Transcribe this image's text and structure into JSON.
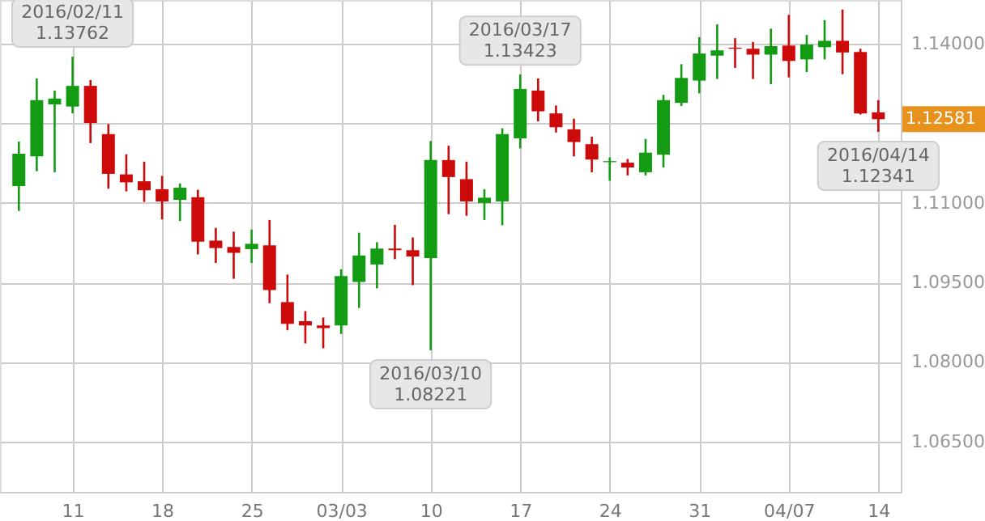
{
  "chart_data": {
    "type": "candlestick",
    "categories": [
      null,
      null,
      null,
      "11",
      null,
      null,
      null,
      null,
      "18",
      null,
      null,
      null,
      null,
      "25",
      null,
      null,
      null,
      null,
      "03/03",
      null,
      null,
      null,
      null,
      "10",
      null,
      null,
      null,
      null,
      "17",
      null,
      null,
      null,
      null,
      "24",
      null,
      null,
      null,
      null,
      "31",
      null,
      null,
      null,
      null,
      "04/07",
      null,
      null,
      null,
      null,
      "14"
    ],
    "ohlc": [
      [
        1.1132,
        1.1216,
        1.1085,
        1.1193
      ],
      [
        1.1188,
        1.1335,
        1.116,
        1.1294
      ],
      [
        1.1286,
        1.1312,
        1.1158,
        1.1297
      ],
      [
        1.1282,
        1.13762,
        1.1269,
        1.1321
      ],
      [
        1.1321,
        1.1332,
        1.1213,
        1.1251
      ],
      [
        1.123,
        1.1249,
        1.1127,
        1.1155
      ],
      [
        1.1154,
        1.1192,
        1.1122,
        1.1139
      ],
      [
        1.1141,
        1.1178,
        1.1102,
        1.1124
      ],
      [
        1.1126,
        1.1151,
        1.1069,
        1.1103
      ],
      [
        1.1106,
        1.1137,
        1.1066,
        1.1129
      ],
      [
        1.1111,
        1.1125,
        1.1003,
        1.1027
      ],
      [
        1.1029,
        1.1053,
        1.0987,
        1.1015
      ],
      [
        1.1017,
        1.1046,
        1.0957,
        1.1006
      ],
      [
        1.1013,
        1.105,
        1.0987,
        1.1023
      ],
      [
        1.102,
        1.1068,
        1.0911,
        1.0936
      ],
      [
        1.0913,
        1.0965,
        1.086,
        1.0872
      ],
      [
        1.0877,
        1.0896,
        1.0835,
        1.0869
      ],
      [
        1.0869,
        1.0884,
        1.0826,
        1.0864
      ],
      [
        1.0869,
        1.0975,
        1.0853,
        1.0962
      ],
      [
        1.0951,
        1.1044,
        1.0902,
        1.1001
      ],
      [
        1.0984,
        1.1026,
        1.0939,
        1.1014
      ],
      [
        1.1014,
        1.1059,
        1.0994,
        1.1011
      ],
      [
        1.1011,
        1.1035,
        1.0945,
        1.0999
      ],
      [
        1.0996,
        1.1217,
        1.08221,
        1.1181
      ],
      [
        1.1181,
        1.1208,
        1.1079,
        1.1149
      ],
      [
        1.1145,
        1.1178,
        1.1076,
        1.1103
      ],
      [
        1.11,
        1.1126,
        1.1068,
        1.111
      ],
      [
        1.1103,
        1.1241,
        1.1058,
        1.123
      ],
      [
        1.1222,
        1.13423,
        1.1203,
        1.1315
      ],
      [
        1.1312,
        1.1335,
        1.1254,
        1.1273
      ],
      [
        1.1269,
        1.1284,
        1.1233,
        1.1243
      ],
      [
        1.1239,
        1.1259,
        1.1188,
        1.1215
      ],
      [
        1.1211,
        1.1225,
        1.1158,
        1.1182
      ],
      [
        1.1177,
        1.1186,
        1.1142,
        1.1179
      ],
      [
        1.1176,
        1.1183,
        1.1152,
        1.1167
      ],
      [
        1.1158,
        1.1221,
        1.1152,
        1.1195
      ],
      [
        1.1191,
        1.1304,
        1.1167,
        1.1294
      ],
      [
        1.1289,
        1.1362,
        1.1283,
        1.1336
      ],
      [
        1.1331,
        1.1413,
        1.1307,
        1.1382
      ],
      [
        1.1378,
        1.1437,
        1.1334,
        1.1388
      ],
      [
        1.1393,
        1.1411,
        1.1355,
        1.1391
      ],
      [
        1.1391,
        1.1404,
        1.1334,
        1.138
      ],
      [
        1.138,
        1.1429,
        1.1324,
        1.1396
      ],
      [
        1.1397,
        1.1455,
        1.1337,
        1.1368
      ],
      [
        1.1371,
        1.1417,
        1.1347,
        1.1399
      ],
      [
        1.1394,
        1.1445,
        1.1371,
        1.1406
      ],
      [
        1.1406,
        1.1465,
        1.1343,
        1.1384
      ],
      [
        1.1385,
        1.1391,
        1.1267,
        1.1269
      ],
      [
        1.1271,
        1.1294,
        1.12341,
        1.12581
      ]
    ],
    "colors": [
      "#139b13",
      "#139b13",
      "#139b13",
      "#139b13",
      "#cc0a0a",
      "#cc0a0a",
      "#cc0a0a",
      "#cc0a0a",
      "#cc0a0a",
      "#139b13",
      "#cc0a0a",
      "#cc0a0a",
      "#cc0a0a",
      "#139b13",
      "#cc0a0a",
      "#cc0a0a",
      "#cc0a0a",
      "#cc0a0a",
      "#139b13",
      "#139b13",
      "#139b13",
      "#cc0a0a",
      "#cc0a0a",
      "#139b13",
      "#cc0a0a",
      "#cc0a0a",
      "#139b13",
      "#139b13",
      "#139b13",
      "#cc0a0a",
      "#cc0a0a",
      "#cc0a0a",
      "#cc0a0a",
      "#139b13",
      "#cc0a0a",
      "#139b13",
      "#139b13",
      "#139b13",
      "#139b13",
      "#139b13",
      "#cc0a0a",
      "#cc0a0a",
      "#139b13",
      "#cc0a0a",
      "#139b13",
      "#139b13",
      "#cc0a0a",
      "#cc0a0a",
      "#cc0a0a"
    ],
    "ylim": [
      1.0555,
      1.1483
    ],
    "yticks": [
      {
        "value": 1.065,
        "label": "1.06500"
      },
      {
        "value": 1.08,
        "label": "1.08000"
      },
      {
        "value": 1.095,
        "label": "1.09500"
      },
      {
        "value": 1.11,
        "label": "1.11000"
      },
      {
        "value": 1.125,
        "label": null
      },
      {
        "value": 1.14,
        "label": "1.14000"
      }
    ],
    "grid": true,
    "annotations": [
      {
        "text": "2016/02/11\n1.13762",
        "x": "11",
        "y": 1.13762
      },
      {
        "text": "2016/03/10\n1.08221",
        "x": "10",
        "y": 1.08221
      },
      {
        "text": "2016/03/17\n1.13423",
        "x": "17",
        "y": 1.13423
      },
      {
        "text": "2016/04/14\n1.12341",
        "x": "14",
        "y": 1.12341
      },
      "1.12581"
    ]
  }
}
